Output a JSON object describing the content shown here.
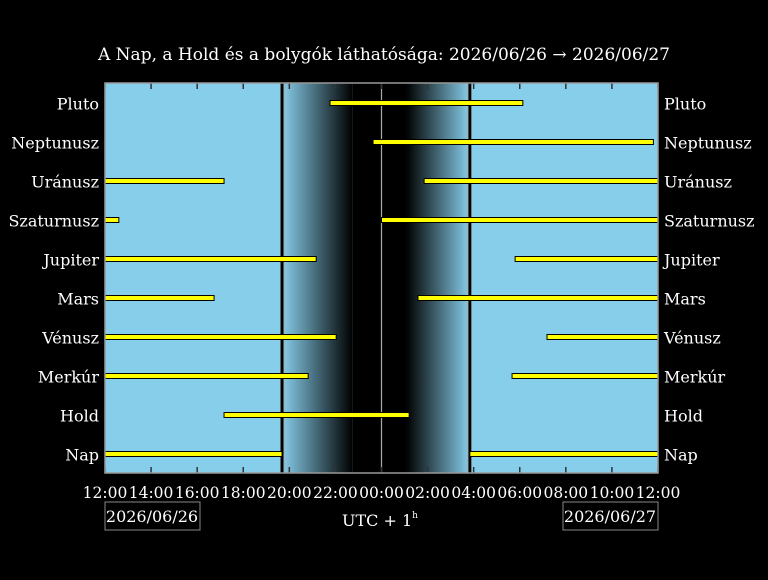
{
  "chart_data": {
    "type": "bar",
    "subtype": "horizontal-interval",
    "title": "A Nap, a Hold és a bolygók láthatósága: 2026/06/26 → 2026/06/27",
    "xlabel": "UTC + 1",
    "xlabel_superscript": "h",
    "date_left": "2026/06/26",
    "date_right": "2026/06/27",
    "xlim": [
      "12:00",
      "12:00 (+1 day)"
    ],
    "x_ticks": [
      "12:00",
      "14:00",
      "16:00",
      "18:00",
      "20:00",
      "22:00",
      "00:00",
      "02:00",
      "04:00",
      "06:00",
      "08:00",
      "10:00",
      "12:00"
    ],
    "twilight": {
      "sunset": "19:41",
      "dark_start": "22:45",
      "dark_end": "01:05",
      "sunrise": "03:50",
      "midnight_line": "00:00"
    },
    "colors": {
      "day": "#87ceeb",
      "night": "#000000",
      "bar": "#ffff00",
      "bar_outline": "#000000"
    },
    "series": [
      {
        "name": "Pluto",
        "intervals": [
          [
            "21:46",
            "06:08"
          ]
        ]
      },
      {
        "name": "Neptunusz",
        "intervals": [
          [
            "23:38",
            "11:48"
          ]
        ]
      },
      {
        "name": "Uránusz",
        "intervals": [
          [
            "12:00",
            "17:10"
          ],
          [
            "01:51",
            "12:00"
          ]
        ]
      },
      {
        "name": "Szaturnusz",
        "intervals": [
          [
            "12:00",
            "12:36"
          ],
          [
            "00:00",
            "12:00"
          ]
        ]
      },
      {
        "name": "Jupiter",
        "intervals": [
          [
            "12:00",
            "21:10"
          ],
          [
            "05:48",
            "12:00"
          ]
        ]
      },
      {
        "name": "Mars",
        "intervals": [
          [
            "12:00",
            "16:44"
          ],
          [
            "01:35",
            "12:00"
          ]
        ]
      },
      {
        "name": "Vénusz",
        "intervals": [
          [
            "12:00",
            "22:02"
          ],
          [
            "07:11",
            "12:00"
          ]
        ]
      },
      {
        "name": "Merkúr",
        "intervals": [
          [
            "12:00",
            "20:49"
          ],
          [
            "05:40",
            "12:00"
          ]
        ]
      },
      {
        "name": "Hold",
        "intervals": [
          [
            "17:10",
            "01:12"
          ]
        ]
      },
      {
        "name": "Nap",
        "intervals": [
          [
            "12:00",
            "19:41"
          ],
          [
            "03:50",
            "12:00"
          ]
        ]
      }
    ]
  }
}
